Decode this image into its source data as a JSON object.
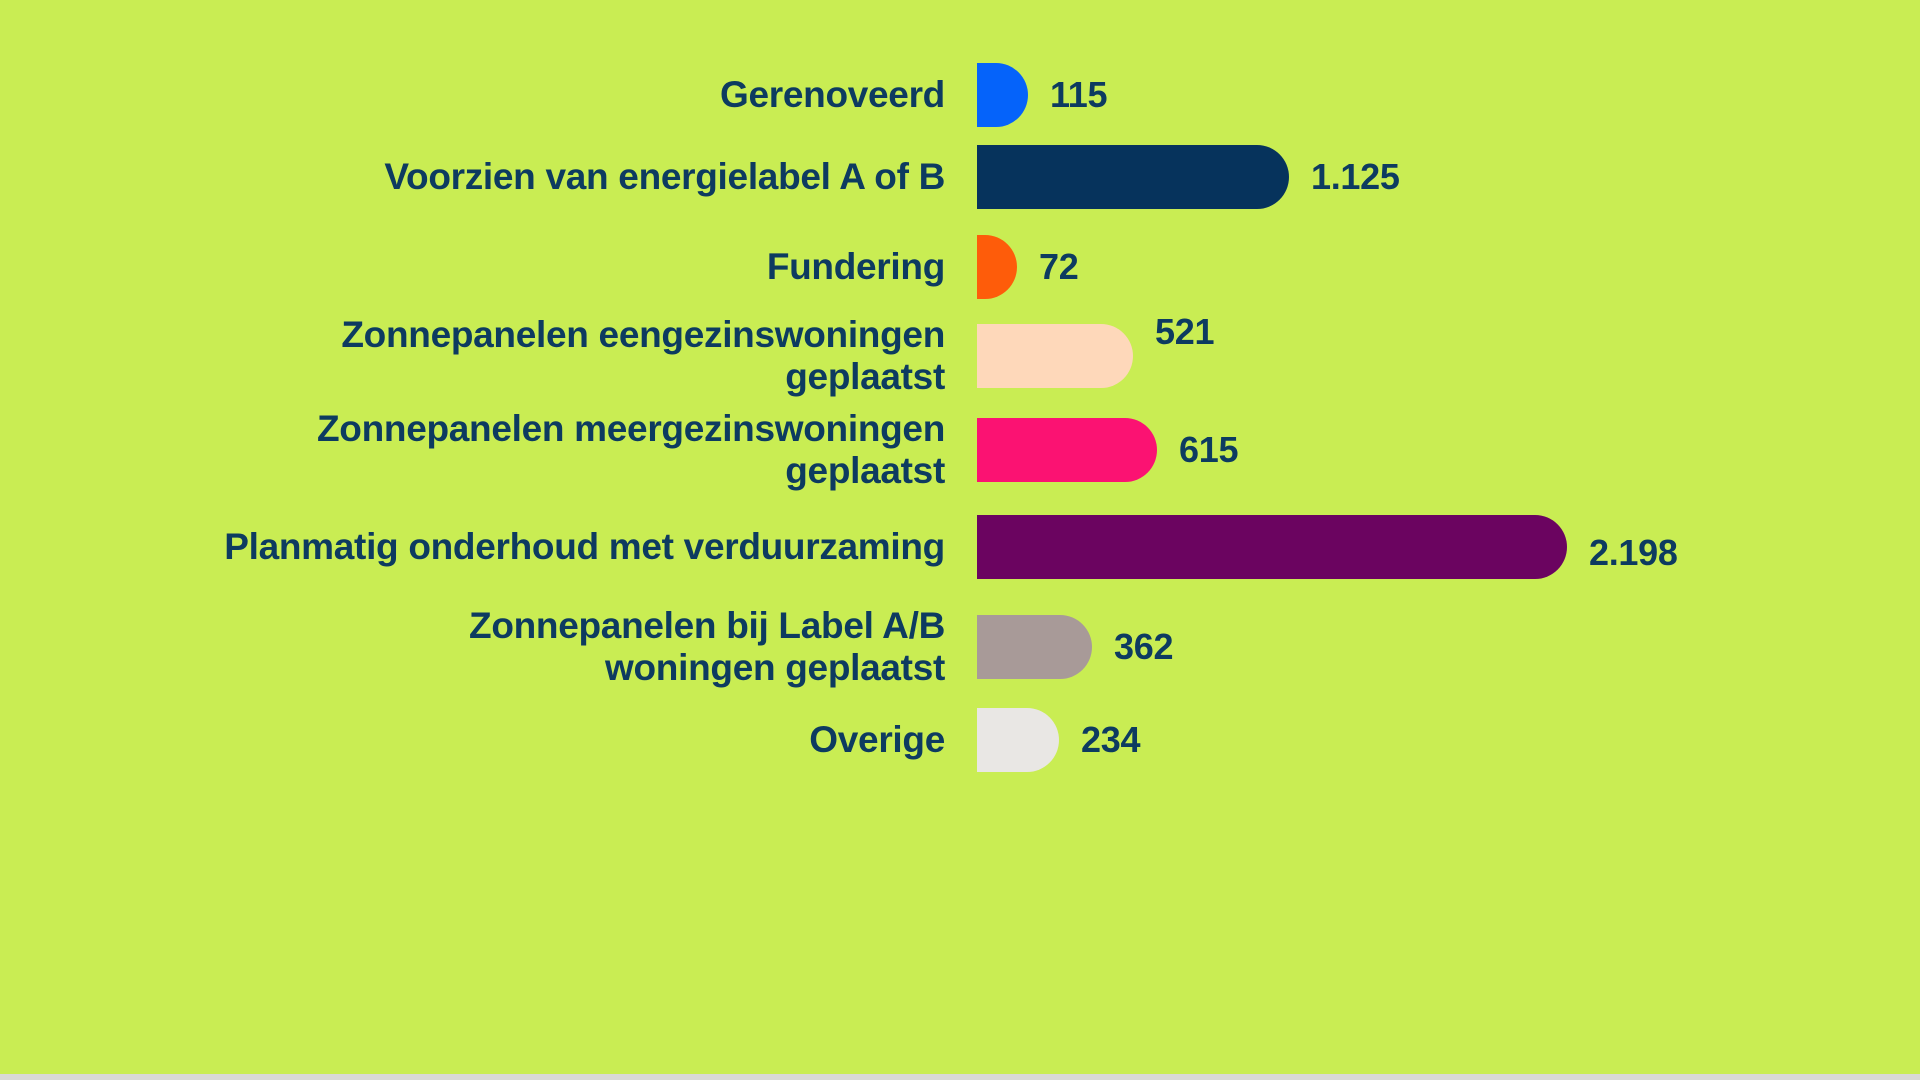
{
  "chart_data": {
    "type": "bar",
    "orientation": "horizontal",
    "title": "",
    "xlabel": "",
    "ylabel": "",
    "legend": false,
    "grid": false,
    "axes_visible": false,
    "background_color": "#c9ed53",
    "text_color": "#0d3b60",
    "categories": [
      "Gerenoveerd",
      "Voorzien van energielabel A of B",
      "Fundering",
      "Zonnepanelen eengezinswoningen geplaatst",
      "Zonnepanelen meergezinswoningen geplaatst",
      "Planmatig onderhoud met verduurzaming",
      "Zonnepanelen bij Label A/B woningen geplaatst",
      "Overige"
    ],
    "values": [
      115,
      1125,
      72,
      521,
      615,
      2198,
      362,
      234
    ],
    "value_labels": [
      "115",
      "1.125",
      "72",
      "521",
      "615",
      "2.198",
      "362",
      "234"
    ],
    "bar_colors": [
      "#0563fa",
      "#06335c",
      "#fe5c0a",
      "#fed8ba",
      "#fb1272",
      "#6b0460",
      "#a89a98",
      "#e9e7e4"
    ],
    "rows": [
      {
        "label": "Gerenoveerd",
        "value": 115,
        "value_label": "115",
        "color": "#0563fa"
      },
      {
        "label": "Voorzien van energielabel A of B",
        "value": 1125,
        "value_label": "1.125",
        "color": "#06335c"
      },
      {
        "label": "Fundering",
        "value": 72,
        "value_label": "72",
        "color": "#fe5c0a"
      },
      {
        "label": "Zonnepanelen eengezinswoningen\ngeplaatst",
        "value": 521,
        "value_label": "521",
        "color": "#fed8ba"
      },
      {
        "label": "Zonnepanelen meergezinswoningen\ngeplaatst",
        "value": 615,
        "value_label": "615",
        "color": "#fb1272"
      },
      {
        "label": "Planmatig onderhoud met verduurzaming",
        "value": 2198,
        "value_label": "2.198",
        "color": "#6b0460"
      },
      {
        "label": "Zonnepanelen bij Label A/B\nwoningen geplaatst",
        "value": 362,
        "value_label": "362",
        "color": "#a89a98"
      },
      {
        "label": "Overige",
        "value": 234,
        "value_label": "234",
        "color": "#e9e7e4"
      }
    ]
  }
}
